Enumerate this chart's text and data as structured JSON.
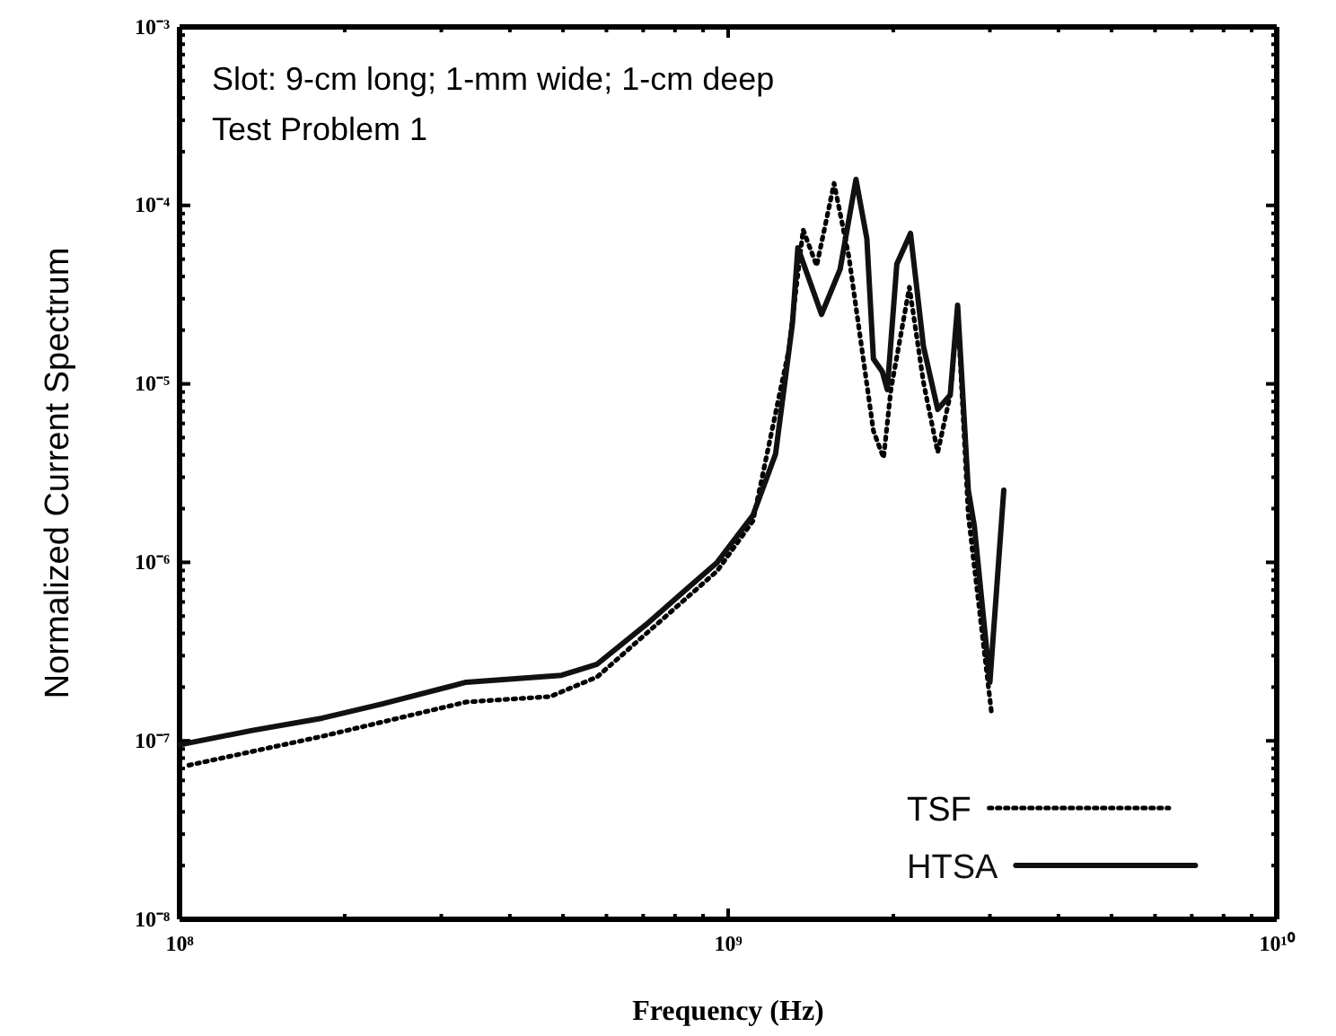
{
  "chart_data": {
    "type": "line",
    "xlabel": "Frequency (Hz)",
    "ylabel": "Normalized Current Spectrum",
    "log": "xy",
    "grid": false,
    "legend": "bottom right",
    "marker": "none",
    "annotations": [
      "Slot: 9-cm long; 1-mm wide; 1-cm deep",
      "Test Problem 1"
    ],
    "xlim": [
      100000000.0,
      10000000000.0
    ],
    "xticks": [
      {
        "value": 100000000.0,
        "label": "10⁸"
      },
      {
        "value": 200000000.0,
        "label": null
      },
      {
        "value": 300000000.0,
        "label": null
      },
      {
        "value": 400000000.0,
        "label": null
      },
      {
        "value": 500000000.0,
        "label": null
      },
      {
        "value": 600000000.0,
        "label": null
      },
      {
        "value": 700000000.0,
        "label": null
      },
      {
        "value": 800000000.0,
        "label": null
      },
      {
        "value": 900000000.0,
        "label": null
      },
      {
        "value": 1000000000.0,
        "label": "10⁹"
      },
      {
        "value": 2000000000.0,
        "label": null
      },
      {
        "value": 3000000000.0,
        "label": null
      },
      {
        "value": 4000000000.0,
        "label": null
      },
      {
        "value": 5000000000.0,
        "label": null
      },
      {
        "value": 6000000000.0,
        "label": null
      },
      {
        "value": 7000000000.0,
        "label": null
      },
      {
        "value": 8000000000.0,
        "label": null
      },
      {
        "value": 9000000000.0,
        "label": null
      },
      {
        "value": 10000000000.0,
        "label": "10¹⁰"
      }
    ],
    "ylim": [
      1e-08,
      0.001
    ],
    "yticks": [
      {
        "value": 1e-08,
        "label": "10⁻⁸"
      },
      {
        "value": 2e-08,
        "label": null
      },
      {
        "value": 3e-08,
        "label": null
      },
      {
        "value": 4e-08,
        "label": null
      },
      {
        "value": 5e-08,
        "label": null
      },
      {
        "value": 6e-08,
        "label": null
      },
      {
        "value": 7e-08,
        "label": null
      },
      {
        "value": 8e-08,
        "label": null
      },
      {
        "value": 9e-08,
        "label": null
      },
      {
        "value": 1e-07,
        "label": "10⁻⁷"
      },
      {
        "value": 2e-07,
        "label": null
      },
      {
        "value": 3e-07,
        "label": null
      },
      {
        "value": 4e-07,
        "label": null
      },
      {
        "value": 5e-07,
        "label": null
      },
      {
        "value": 6e-07,
        "label": null
      },
      {
        "value": 7e-07,
        "label": null
      },
      {
        "value": 8e-07,
        "label": null
      },
      {
        "value": 9e-07,
        "label": null
      },
      {
        "value": 1e-06,
        "label": "10⁻⁶"
      },
      {
        "value": 2e-06,
        "label": null
      },
      {
        "value": 3e-06,
        "label": null
      },
      {
        "value": 4e-06,
        "label": null
      },
      {
        "value": 5e-06,
        "label": null
      },
      {
        "value": 6e-06,
        "label": null
      },
      {
        "value": 7e-06,
        "label": null
      },
      {
        "value": 8e-06,
        "label": null
      },
      {
        "value": 9e-06,
        "label": null
      },
      {
        "value": 1e-05,
        "label": "10⁻⁵"
      },
      {
        "value": 2e-05,
        "label": null
      },
      {
        "value": 3e-05,
        "label": null
      },
      {
        "value": 4e-05,
        "label": null
      },
      {
        "value": 5e-05,
        "label": null
      },
      {
        "value": 6e-05,
        "label": null
      },
      {
        "value": 7e-05,
        "label": null
      },
      {
        "value": 8e-05,
        "label": null
      },
      {
        "value": 9e-05,
        "label": null
      },
      {
        "value": 0.0001,
        "label": "10⁻⁴"
      },
      {
        "value": 0.0002,
        "label": null
      },
      {
        "value": 0.0003,
        "label": null
      },
      {
        "value": 0.0004,
        "label": null
      },
      {
        "value": 0.0005,
        "label": null
      },
      {
        "value": 0.0006,
        "label": null
      },
      {
        "value": 0.0007,
        "label": null
      },
      {
        "value": 0.0008,
        "label": null
      },
      {
        "value": 0.0009,
        "label": null
      },
      {
        "value": 0.001,
        "label": "10⁻³"
      }
    ],
    "series": [
      {
        "name": "TSF",
        "color": "#000000",
        "line_style": "dotted",
        "x": [
          104000000.0,
          182000000.0,
          333000000.0,
          474000000.0,
          577000000.0,
          955000000.0,
          1110000000.0,
          1290000000.0,
          1370000000.0,
          1450000000.0,
          1560000000.0,
          1660000000.0,
          1840000000.0,
          1920000000.0,
          1980000000.0,
          2140000000.0,
          2270000000.0,
          2410000000.0,
          2540000000.0,
          2620000000.0,
          2740000000.0,
          3020000000.0
        ],
        "values": [
          7.3e-08,
          1.06e-07,
          1.65e-07,
          1.77e-07,
          2.28e-07,
          8.95e-07,
          1.71e-06,
          1.55e-05,
          7.3e-05,
          4.59e-05,
          0.000133,
          5.15e-05,
          5.45e-06,
          3.85e-06,
          9.29e-06,
          3.48e-05,
          1.02e-05,
          4.13e-06,
          8.67e-06,
          2.57e-05,
          1.84e-06,
          1.44e-07
        ]
      },
      {
        "name": "HTSA",
        "color": "#111111",
        "line_style": "solid",
        "x": [
          100000000.0,
          135000000.0,
          182000000.0,
          234000000.0,
          333000000.0,
          497000000.0,
          577000000.0,
          708000000.0,
          955000000.0,
          1110000000.0,
          1220000000.0,
          1310000000.0,
          1340000000.0,
          1480000000.0,
          1600000000.0,
          1710000000.0,
          1790000000.0,
          1840000000.0,
          1910000000.0,
          1950000000.0,
          2030000000.0,
          2150000000.0,
          2270000000.0,
          2410000000.0,
          2540000000.0,
          2620000000.0,
          2740000000.0,
          2810000000.0,
          3000000000.0,
          3180000000.0
        ],
        "values": [
          9.5e-08,
          1.14e-07,
          1.34e-07,
          1.61e-07,
          2.13e-07,
          2.33e-07,
          2.69e-07,
          4.47e-07,
          1e-06,
          1.84e-06,
          4.04e-06,
          2.19e-05,
          5.79e-05,
          2.45e-05,
          4.39e-05,
          0.00014,
          6.5e-05,
          1.38e-05,
          1.17e-05,
          9.29e-06,
          4.7e-05,
          6.97e-05,
          1.62e-05,
          7.19e-06,
          8.67e-06,
          2.76e-05,
          2.54e-06,
          1.6e-06,
          2.13e-07,
          2.54e-06
        ]
      }
    ]
  }
}
